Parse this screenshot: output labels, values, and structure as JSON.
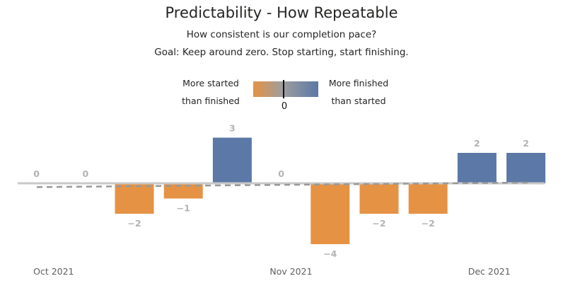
{
  "header": {
    "title": "Predictability - How Repeatable",
    "subtitle1": "How consistent is our completion pace?",
    "subtitle2": "Goal: Keep around zero. Stop starting, start finishing."
  },
  "legend": {
    "left_line1": "More started",
    "left_line2": "than finished",
    "right_line1": "More finished",
    "right_line2": "than started",
    "center": "0",
    "colors": {
      "negative": "#e69244",
      "neutral": "#9e9e9e",
      "positive": "#5b78a6"
    }
  },
  "chart_data": {
    "type": "bar",
    "title": "Predictability - How Repeatable",
    "x_tick_labels": [
      "Oct 2021",
      "Nov 2021",
      "Dec 2021"
    ],
    "values": [
      0,
      0,
      -2,
      -1,
      3,
      0,
      -4,
      -2,
      -2,
      2,
      2
    ],
    "ylim": [
      -4,
      3
    ],
    "trend_line": {
      "style": "dashed",
      "color": "#999999",
      "start": -0.25,
      "end": 0.05
    },
    "colors": {
      "positive": "#5b78a6",
      "negative": "#e69244",
      "label": "#b3b3b3",
      "baseline": "#c8c8c8"
    }
  }
}
